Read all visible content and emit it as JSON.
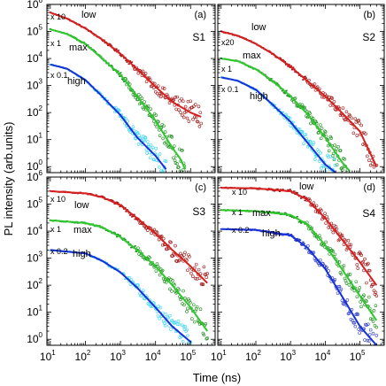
{
  "figure": {
    "ylabel": "PL intensity (arb.units)",
    "xlabel": "Time (ns)"
  },
  "colors": {
    "low_fit": "#d62020",
    "low_data": "#a01818",
    "max_fit": "#2ec82e",
    "max_data": "#1f8f1f",
    "high_fit": "#1830d8",
    "high_data_s1_s3": "#3fd6f0",
    "high_data_s4": "#3040c8"
  },
  "chart_data": [
    {
      "type": "scatter",
      "panel": "(a)",
      "sample": "S1",
      "xscale": "log",
      "yscale": "log",
      "xlim": [
        8,
        500000
      ],
      "ylim": [
        0.6,
        1000000
      ],
      "grid": false,
      "series": [
        {
          "name": "low",
          "multiplier": "x 10",
          "pts": [
            [
              10,
              500000
            ],
            [
              30,
              300000
            ],
            [
              100,
              130000
            ],
            [
              300,
              50000
            ],
            [
              1000,
              15000
            ],
            [
              3000,
              4000
            ],
            [
              10000,
              900
            ],
            [
              30000,
              250
            ],
            [
              100000,
              100
            ],
            [
              200000,
              70
            ]
          ]
        },
        {
          "name": "max",
          "multiplier": "x 1",
          "pts": [
            [
              10,
              120000
            ],
            [
              30,
              80000
            ],
            [
              100,
              35000
            ],
            [
              300,
              10000
            ],
            [
              1000,
              2500
            ],
            [
              3000,
              400
            ],
            [
              10000,
              50
            ],
            [
              30000,
              5
            ],
            [
              50000,
              2
            ],
            [
              70000,
              0.8
            ]
          ]
        },
        {
          "name": "high",
          "multiplier": "x 0.1",
          "pts": [
            [
              10,
              6000
            ],
            [
              30,
              4200
            ],
            [
              100,
              1600
            ],
            [
              300,
              400
            ],
            [
              1000,
              80
            ],
            [
              3000,
              12
            ],
            [
              10000,
              2.5
            ],
            [
              20000,
              0.8
            ]
          ]
        }
      ]
    },
    {
      "type": "scatter",
      "panel": "(b)",
      "sample": "S2",
      "xscale": "log",
      "yscale": "log",
      "xlim": [
        8,
        500000
      ],
      "ylim": [
        0.6,
        1000000
      ],
      "grid": false,
      "series": [
        {
          "name": "low",
          "multiplier": "x20",
          "pts": [
            [
              10,
              100000
            ],
            [
              30,
              70000
            ],
            [
              100,
              35000
            ],
            [
              300,
              15000
            ],
            [
              1000,
              5000
            ],
            [
              3000,
              1500
            ],
            [
              10000,
              400
            ],
            [
              30000,
              100
            ],
            [
              100000,
              20
            ],
            [
              300000,
              1
            ]
          ]
        },
        {
          "name": "max",
          "multiplier": "x 1",
          "pts": [
            [
              10,
              10000
            ],
            [
              30,
              8000
            ],
            [
              100,
              4000
            ],
            [
              300,
              1500
            ],
            [
              1000,
              400
            ],
            [
              3000,
              90
            ],
            [
              10000,
              12
            ],
            [
              30000,
              1.5
            ],
            [
              50000,
              0.7
            ]
          ]
        },
        {
          "name": "high",
          "multiplier": "x 0.1",
          "pts": [
            [
              10,
              2000
            ],
            [
              30,
              1500
            ],
            [
              100,
              700
            ],
            [
              300,
              200
            ],
            [
              1000,
              45
            ],
            [
              3000,
              8
            ],
            [
              10000,
              1.2
            ],
            [
              20000,
              0.6
            ]
          ]
        }
      ]
    },
    {
      "type": "scatter",
      "panel": "(c)",
      "sample": "S3",
      "xscale": "log",
      "yscale": "log",
      "xlim": [
        8,
        500000
      ],
      "ylim": [
        0.6,
        1000000
      ],
      "grid": false,
      "series": [
        {
          "name": "low",
          "multiplier": "x 10",
          "pts": [
            [
              10,
              300000
            ],
            [
              100,
              250000
            ],
            [
              300,
              180000
            ],
            [
              1000,
              90000
            ],
            [
              3000,
              30000
            ],
            [
              10000,
              8000
            ],
            [
              30000,
              2000
            ],
            [
              100000,
              500
            ],
            [
              300000,
              120
            ]
          ]
        },
        {
          "name": "max",
          "multiplier": "x 1",
          "pts": [
            [
              10,
              25000
            ],
            [
              100,
              20000
            ],
            [
              300,
              14000
            ],
            [
              1000,
              6000
            ],
            [
              3000,
              2000
            ],
            [
              10000,
              500
            ],
            [
              30000,
              100
            ],
            [
              100000,
              15
            ],
            [
              300000,
              2
            ]
          ]
        },
        {
          "name": "high",
          "multiplier": "x 0.2",
          "pts": [
            [
              10,
              2000
            ],
            [
              100,
              1500
            ],
            [
              300,
              800
            ],
            [
              1000,
              300
            ],
            [
              3000,
              80
            ],
            [
              10000,
              15
            ],
            [
              30000,
              3
            ],
            [
              100000,
              0.8
            ]
          ]
        }
      ]
    },
    {
      "type": "scatter",
      "panel": "(d)",
      "sample": "S4",
      "xscale": "log",
      "yscale": "log",
      "xlim": [
        8,
        500000
      ],
      "ylim": [
        0.6,
        1000000
      ],
      "grid": false,
      "series": [
        {
          "name": "low",
          "multiplier": "x 10",
          "pts": [
            [
              10,
              400000
            ],
            [
              100,
              380000
            ],
            [
              1000,
              300000
            ],
            [
              3000,
              150000
            ],
            [
              10000,
              30000
            ],
            [
              30000,
              5000
            ],
            [
              100000,
              700
            ],
            [
              300000,
              100
            ]
          ]
        },
        {
          "name": "max",
          "multiplier": "x 1",
          "pts": [
            [
              10,
              60000
            ],
            [
              100,
              55000
            ],
            [
              1000,
              40000
            ],
            [
              3000,
              18000
            ],
            [
              10000,
              3000
            ],
            [
              30000,
              400
            ],
            [
              100000,
              40
            ],
            [
              300000,
              5
            ]
          ]
        },
        {
          "name": "high",
          "multiplier": "x 0.2",
          "pts": [
            [
              10,
              12000
            ],
            [
              100,
              11000
            ],
            [
              1000,
              7000
            ],
            [
              3000,
              2500
            ],
            [
              10000,
              400
            ],
            [
              30000,
              40
            ],
            [
              100000,
              3
            ],
            [
              300000,
              0.6
            ]
          ]
        }
      ]
    }
  ]
}
